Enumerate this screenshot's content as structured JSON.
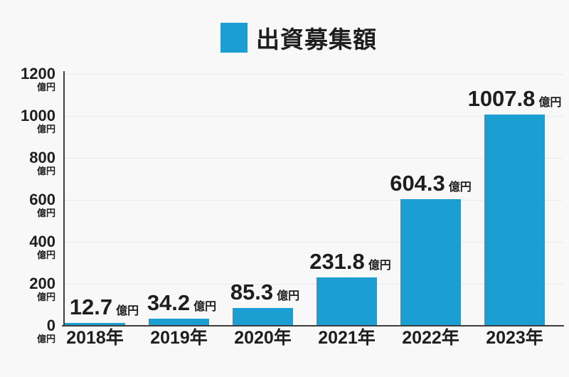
{
  "chart_data": {
    "type": "bar",
    "title": "出資募集額",
    "legend_label": "出資募集額",
    "legend_position": "top",
    "categories": [
      "2018年",
      "2019年",
      "2020年",
      "2021年",
      "2022年",
      "2023年"
    ],
    "values": [
      12.7,
      34.2,
      85.3,
      231.8,
      604.3,
      1007.8
    ],
    "value_labels": [
      "12.7",
      "34.2",
      "85.3",
      "231.8",
      "604.3",
      "1007.8"
    ],
    "unit": "億円",
    "y_ticks": [
      0,
      200,
      400,
      600,
      800,
      1000,
      1200
    ],
    "y_tick_unit": "億円",
    "ylim": [
      0,
      1200
    ],
    "grid": true,
    "bar_color": "#1b9ed2",
    "axis_color": "#3d3d3d",
    "grid_color": "#e8e8e8",
    "text_color": "#1e1e1e",
    "background_color": "#f8f8f8"
  }
}
